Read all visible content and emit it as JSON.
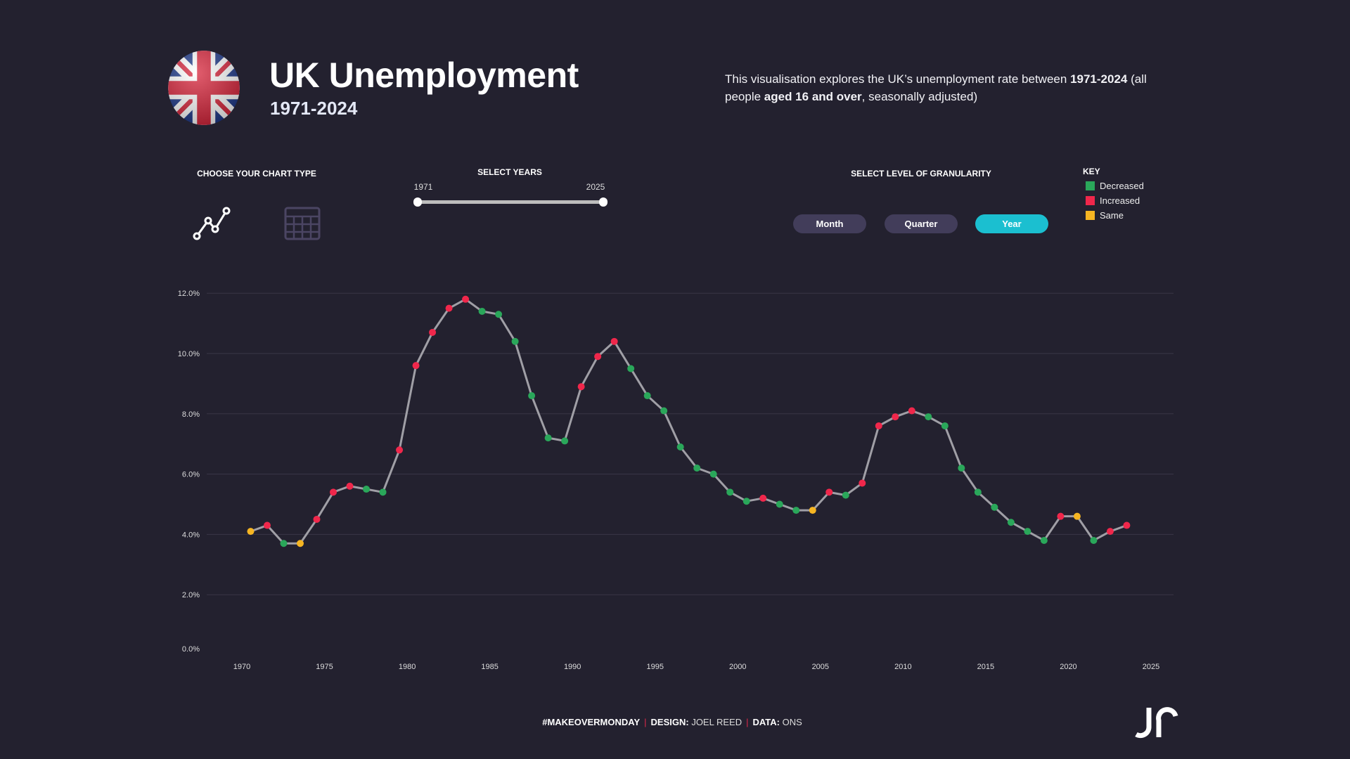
{
  "header": {
    "title": "UK Unemployment",
    "subtitle": "1971-2024",
    "description": {
      "p1": "This visualisation explores the UK’s unemployment rate between ",
      "b1": "1971-2024",
      "p2": " (all people ",
      "b2": "aged 16 and over",
      "p3": ", seasonally adjusted)"
    }
  },
  "controls": {
    "chart_type_label": "CHOOSE YOUR CHART TYPE",
    "chart_types": [
      {
        "name": "line-chart-icon",
        "selected": true
      },
      {
        "name": "table-icon",
        "selected": false
      }
    ],
    "years_label": "SELECT YEARS",
    "year_start": "1971",
    "year_end": "2025",
    "granularity_label": "SELECT LEVEL OF GRANULARITY",
    "granularity": [
      "Month",
      "Quarter",
      "Year"
    ],
    "granularity_selected": "Year"
  },
  "key": {
    "title": "KEY",
    "items": [
      {
        "label": "Decreased",
        "color": "#2aa75a"
      },
      {
        "label": "Increased",
        "color": "#f0274b"
      },
      {
        "label": "Same",
        "color": "#f6b522"
      }
    ]
  },
  "chart_data": {
    "type": "line",
    "title": "UK Unemployment rate",
    "xlabel": "",
    "ylabel": "",
    "xlim": [
      1970,
      2025
    ],
    "ylim": [
      0,
      12
    ],
    "x_ticks": [
      "1970",
      "1975",
      "1980",
      "1985",
      "1990",
      "1995",
      "2000",
      "2005",
      "2010",
      "2015",
      "2020",
      "2025"
    ],
    "y_ticks": [
      "0.0%",
      "2.0%",
      "4.0%",
      "6.0%",
      "8.0%",
      "10.0%",
      "12.0%"
    ],
    "grid": true,
    "line_color": "#a09fa6",
    "status_colors": {
      "Decreased": "#2aa75a",
      "Increased": "#f0274b",
      "Same": "#f6b522"
    },
    "x": [
      1971,
      1972,
      1973,
      1974,
      1975,
      1976,
      1977,
      1978,
      1979,
      1980,
      1981,
      1982,
      1983,
      1984,
      1985,
      1986,
      1987,
      1988,
      1989,
      1990,
      1991,
      1992,
      1993,
      1994,
      1995,
      1996,
      1997,
      1998,
      1999,
      2000,
      2001,
      2002,
      2003,
      2004,
      2005,
      2006,
      2007,
      2008,
      2009,
      2010,
      2011,
      2012,
      2013,
      2014,
      2015,
      2016,
      2017,
      2018,
      2019,
      2020,
      2021,
      2022,
      2023,
      2024
    ],
    "values": [
      4.1,
      4.3,
      3.7,
      3.7,
      4.5,
      5.4,
      5.6,
      5.5,
      5.4,
      6.8,
      9.6,
      10.7,
      11.5,
      11.8,
      11.4,
      11.3,
      10.4,
      8.6,
      7.2,
      7.1,
      8.9,
      9.9,
      10.4,
      9.5,
      8.6,
      8.1,
      6.9,
      6.2,
      6.0,
      5.4,
      5.1,
      5.2,
      5.0,
      4.8,
      4.8,
      5.4,
      5.3,
      5.7,
      7.6,
      7.9,
      8.1,
      7.9,
      7.6,
      6.2,
      5.4,
      4.9,
      4.4,
      4.1,
      3.8,
      4.6,
      4.6,
      3.8,
      4.1,
      4.3
    ],
    "status": [
      "Same",
      "Increased",
      "Decreased",
      "Same",
      "Increased",
      "Increased",
      "Increased",
      "Decreased",
      "Decreased",
      "Increased",
      "Increased",
      "Increased",
      "Increased",
      "Increased",
      "Decreased",
      "Decreased",
      "Decreased",
      "Decreased",
      "Decreased",
      "Decreased",
      "Increased",
      "Increased",
      "Increased",
      "Decreased",
      "Decreased",
      "Decreased",
      "Decreased",
      "Decreased",
      "Decreased",
      "Decreased",
      "Decreased",
      "Increased",
      "Decreased",
      "Decreased",
      "Same",
      "Increased",
      "Decreased",
      "Increased",
      "Increased",
      "Increased",
      "Increased",
      "Decreased",
      "Decreased",
      "Decreased",
      "Decreased",
      "Decreased",
      "Decreased",
      "Decreased",
      "Decreased",
      "Increased",
      "Same",
      "Decreased",
      "Increased",
      "Increased"
    ]
  },
  "footer": {
    "tag": "#MAKEOVERMONDAY",
    "design_label": "DESIGN:",
    "design_value": " JOEL REED",
    "data_label": "DATA:",
    "data_value": " ONS",
    "logo": "JR"
  }
}
